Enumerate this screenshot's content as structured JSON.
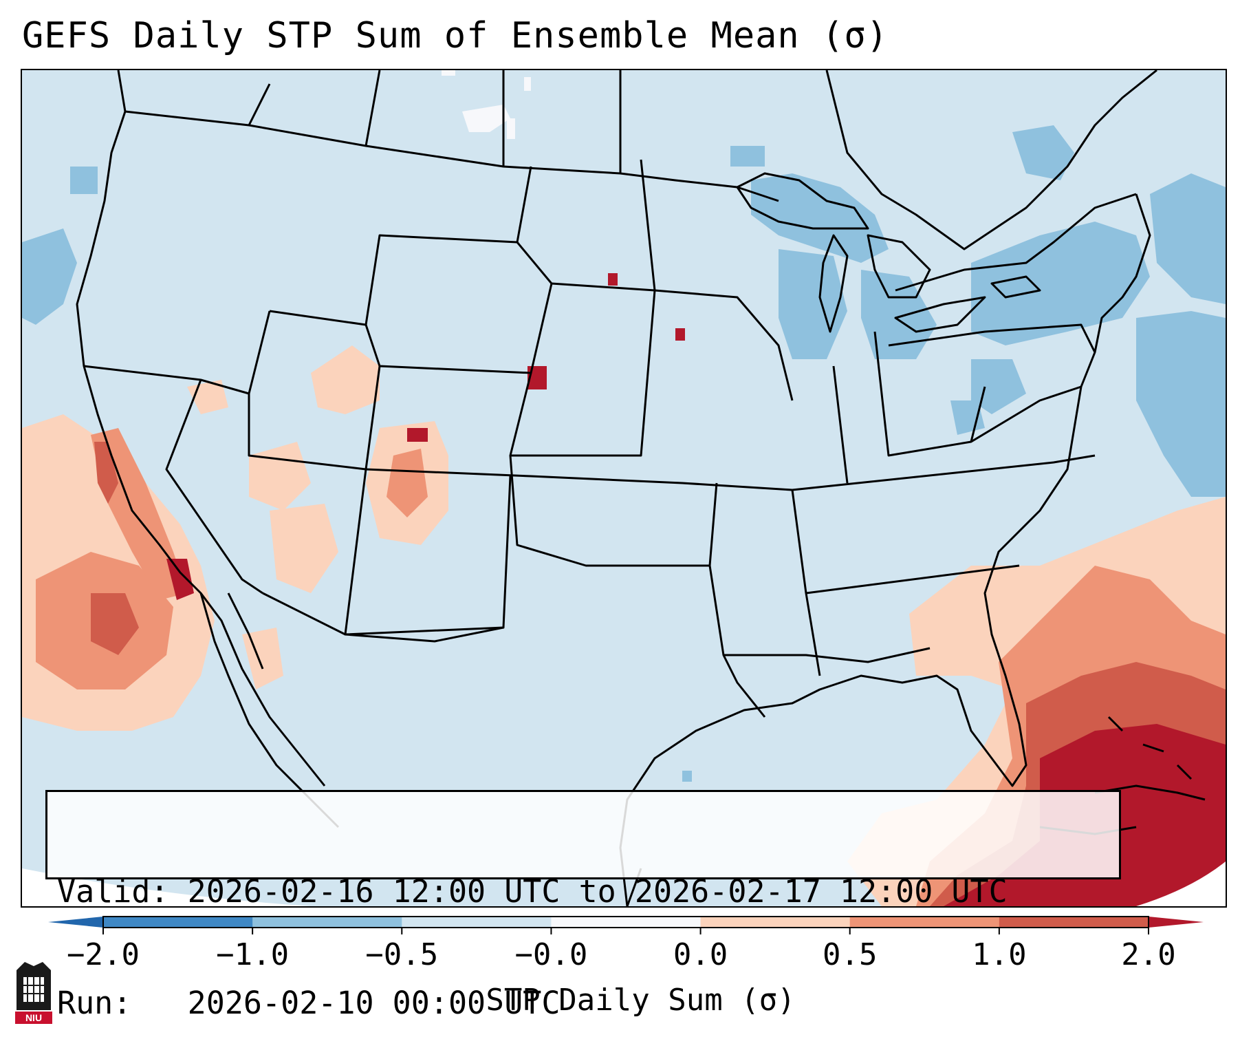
{
  "title": "GEFS Daily STP Sum of Ensemble Mean (σ)",
  "info": {
    "valid_line": "Valid: 2026-02-16 12:00 UTC to 2026-02-17 12:00 UTC",
    "run_line": "Run:   2026-02-10 00:00 UTC"
  },
  "colorbar": {
    "label": "STP Daily Sum (σ)",
    "ticks": [
      "−2.0",
      "−1.0",
      "−0.5",
      "−0.0",
      "0.0",
      "0.5",
      "1.0",
      "2.0"
    ],
    "bins": [
      {
        "color": "#3f88c5"
      },
      {
        "color": "#8fc1de"
      },
      {
        "color": "#d2e5f0"
      },
      {
        "color": "#f7f8fb"
      },
      {
        "color": "#fbd3bc"
      },
      {
        "color": "#ee9476"
      },
      {
        "color": "#d05c4b"
      }
    ],
    "extend_low_color": "#2166ac",
    "extend_high_color": "#b2182b"
  },
  "logo": {
    "text": "NIU"
  },
  "colors": {
    "background": "#d2e5f0",
    "coast": "#000000"
  }
}
